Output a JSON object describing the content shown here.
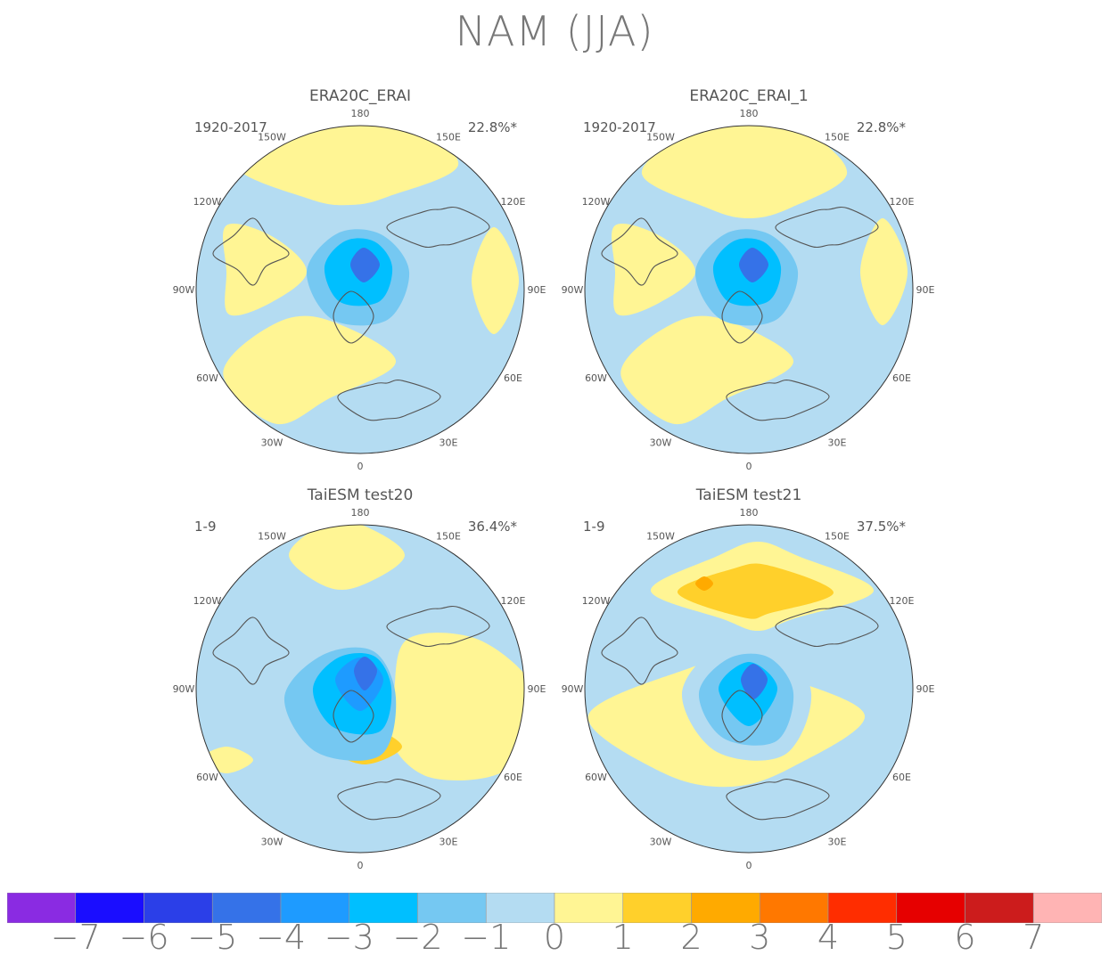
{
  "title": "NAM (JJA)",
  "panels": [
    {
      "title": "ERA20C_ERAI",
      "years": "1920-2017",
      "variance": "22.8%*"
    },
    {
      "title": "ERA20C_ERAI_1",
      "years": "1920-2017",
      "variance": "22.8%*"
    },
    {
      "title": "TaiESM test20",
      "years": "1-9",
      "variance": "36.4%*"
    },
    {
      "title": "TaiESM test21",
      "years": "1-9",
      "variance": "37.5%*"
    }
  ],
  "longitude_labels": [
    "180",
    "150E",
    "120E",
    "90E",
    "60E",
    "30E",
    "0",
    "30W",
    "60W",
    "90W",
    "120W",
    "150W"
  ],
  "chart_data": {
    "type": "polar-contour-map",
    "projection": "north-polar-stereographic",
    "colorbar": {
      "levels": [
        "-7",
        "-6",
        "-5",
        "-4",
        "-3",
        "-2",
        "-1",
        "0",
        "1",
        "2",
        "3",
        "4",
        "5",
        "6",
        "7"
      ],
      "colors": [
        "#8a2be2",
        "#1a0dff",
        "#2b3fe8",
        "#3572e8",
        "#1e9bff",
        "#00bfff",
        "#75c8f2",
        "#b4dcf2",
        "#fff594",
        "#ffd02b",
        "#ffaa00",
        "#ff7800",
        "#ff2d00",
        "#e60000",
        "#cc1c1c",
        "#ffb4b4"
      ]
    }
  }
}
